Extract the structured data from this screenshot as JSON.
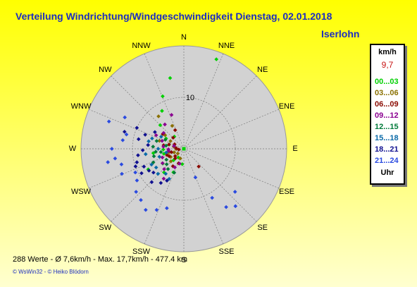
{
  "header": {
    "title": "Verteilung Windrichtung/Windgeschwindigkeit  Dienstag, 02.01.2018",
    "station": "Iserlohn"
  },
  "legend": {
    "unit": "km/h",
    "current_value": "9,7",
    "ranges": [
      {
        "label": "00...03",
        "color": "#00d000"
      },
      {
        "label": "03...06",
        "color": "#8a7000"
      },
      {
        "label": "06...09",
        "color": "#8a0a00"
      },
      {
        "label": "09...12",
        "color": "#8a0090"
      },
      {
        "label": "12...15",
        "color": "#007a3a"
      },
      {
        "label": "15...18",
        "color": "#0a6aa8"
      },
      {
        "label": "18...21",
        "color": "#101090"
      },
      {
        "label": "21...24",
        "color": "#2a4ae0"
      }
    ],
    "footer": "Uhr"
  },
  "footer": {
    "stats": "288 Werte   -   Ø 7,6km/h  -  Max. 17,7km/h   -   477.4 km",
    "credit": "© WsWin32  -  © Heiko Blödorn"
  },
  "colors": {
    "background_top": "#ffff00",
    "background_bottom": "#ffffd0",
    "title": "#1c2dc0",
    "plot_disc": "#d2d2d2"
  },
  "chart_data": {
    "type": "scatter",
    "subtype": "polar wind rose",
    "title": "Verteilung Windrichtung/Windgeschwindigkeit  Dienstag, 02.01.2018",
    "directions": [
      "N",
      "NNE",
      "NE",
      "ENE",
      "E",
      "ESE",
      "SE",
      "SSE",
      "S",
      "SSW",
      "SW",
      "WSW",
      "W",
      "WNW",
      "NW",
      "NNW"
    ],
    "radial_unit": "km/h",
    "radial_range": [
      0,
      20
    ],
    "radial_ticks": [
      10
    ],
    "radial_tick_labels": [
      "10"
    ],
    "grid": true,
    "series": [
      {
        "name": "00...03",
        "color": "#00d000",
        "points": [
          [
            20,
            18.5
          ],
          [
            349,
            14
          ],
          [
            338,
            11
          ],
          [
            330,
            8.5
          ],
          [
            315,
            6.5
          ],
          [
            300,
            4
          ],
          [
            286,
            3
          ],
          [
            256,
            4
          ],
          [
            235,
            5
          ],
          [
            222,
            3
          ],
          [
            212,
            2
          ],
          [
            220,
            6
          ],
          [
            240,
            8
          ],
          [
            262,
            6
          ],
          [
            322,
            3
          ],
          [
            268,
            4
          ],
          [
            204,
            5
          ],
          [
            186,
            3
          ]
        ]
      },
      {
        "name": "03...06",
        "color": "#8a7000",
        "points": [
          [
            322,
            8
          ],
          [
            333,
            5
          ],
          [
            300,
            3
          ],
          [
            282,
            2
          ],
          [
            268,
            1.5
          ],
          [
            250,
            2
          ],
          [
            238,
            3
          ],
          [
            226,
            3.5
          ],
          [
            200,
            2
          ],
          [
            306,
            4.5
          ],
          [
            256,
            3
          ],
          [
            288,
            5
          ],
          [
            232,
            1.5
          ]
        ]
      },
      {
        "name": "06...09",
        "color": "#8a0a00",
        "points": [
          [
            335,
            4
          ],
          [
            316,
            3
          ],
          [
            296,
            2
          ],
          [
            275,
            1.5
          ],
          [
            255,
            2.5
          ],
          [
            243,
            3.2
          ],
          [
            230,
            2.2
          ],
          [
            212,
            4
          ],
          [
            200,
            3
          ],
          [
            280,
            4
          ],
          [
            262,
            1
          ],
          [
            286,
            3
          ],
          [
            250,
            3.5
          ],
          [
            222,
            2.5
          ],
          [
            140,
            4.5
          ],
          [
            305,
            5
          ]
        ]
      },
      {
        "name": "09...12",
        "color": "#8a0090",
        "points": [
          [
            340,
            7
          ],
          [
            322,
            6
          ],
          [
            308,
            5
          ],
          [
            296,
            6
          ],
          [
            290,
            4.5
          ],
          [
            276,
            4
          ],
          [
            262,
            3
          ],
          [
            248,
            4.5
          ],
          [
            236,
            5
          ],
          [
            224,
            5.5
          ],
          [
            214,
            7
          ],
          [
            206,
            4
          ],
          [
            196,
            3
          ],
          [
            286,
            2
          ],
          [
            268,
            3
          ]
        ]
      },
      {
        "name": "12...15",
        "color": "#007a3a",
        "points": [
          [
            286,
            5.5
          ],
          [
            274,
            6
          ],
          [
            264,
            5.5
          ],
          [
            256,
            6
          ],
          [
            246,
            6.5
          ],
          [
            238,
            4
          ],
          [
            228,
            4.5
          ],
          [
            218,
            5
          ],
          [
            202,
            5
          ],
          [
            280,
            3.5
          ],
          [
            296,
            4
          ],
          [
            262,
            4.5
          ]
        ]
      },
      {
        "name": "15...18",
        "color": "#0a6aa8",
        "points": [
          [
            282,
            7
          ],
          [
            270,
            5
          ],
          [
            262,
            7.5
          ],
          [
            252,
            5
          ],
          [
            244,
            7
          ],
          [
            236,
            6.5
          ],
          [
            226,
            7
          ],
          [
            216,
            6
          ],
          [
            206,
            6.5
          ],
          [
            258,
            3.5
          ],
          [
            288,
            6.5
          ],
          [
            298,
            5
          ]
        ]
      },
      {
        "name": "18...21",
        "color": "#101090",
        "points": [
          [
            300,
            6.5
          ],
          [
            290,
            8
          ],
          [
            282,
            9
          ],
          [
            276,
            7
          ],
          [
            268,
            8
          ],
          [
            262,
            9
          ],
          [
            254,
            9.5
          ],
          [
            246,
            8.5
          ],
          [
            238,
            8
          ],
          [
            232,
            7.5
          ],
          [
            224,
            9
          ],
          [
            214,
            8
          ],
          [
            208,
            7
          ],
          [
            294,
            10
          ],
          [
            286,
            12
          ],
          [
            250,
            10
          ],
          [
            240,
            9.5
          ]
        ]
      },
      {
        "name": "21...24",
        "color": "#2a4ae0",
        "points": [
          [
            298,
            13
          ],
          [
            290,
            15.5
          ],
          [
            284,
            11.5
          ],
          [
            278,
            12
          ],
          [
            270,
            14
          ],
          [
            262,
            13.5
          ],
          [
            256,
            12.5
          ],
          [
            248,
            13
          ],
          [
            244,
            10.5
          ],
          [
            236,
            11
          ],
          [
            228,
            12.5
          ],
          [
            220,
            13
          ],
          [
            212,
            14
          ],
          [
            204,
            13
          ],
          [
            196,
            12
          ],
          [
            158,
            6
          ],
          [
            150,
            11
          ],
          [
            144,
            14
          ],
          [
            138,
            15
          ],
          [
            130,
            13
          ],
          [
            260,
            15
          ]
        ]
      }
    ]
  }
}
